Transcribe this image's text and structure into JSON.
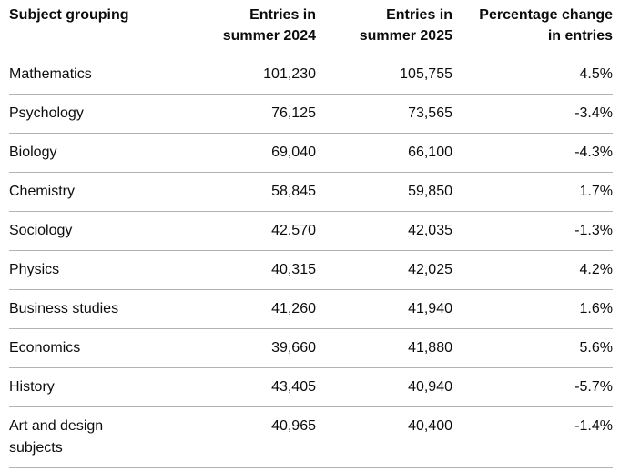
{
  "table": {
    "headers": {
      "subject": "Subject grouping",
      "entries_2024": [
        "Entries in",
        "summer 2024"
      ],
      "entries_2025": [
        "Entries in",
        "summer 2025"
      ],
      "change": [
        "Percentage change",
        "in entries"
      ]
    },
    "rows": [
      {
        "subject": "Mathematics",
        "entries_2024": "101,230",
        "entries_2025": "105,755",
        "change": "4.5%"
      },
      {
        "subject": "Psychology",
        "entries_2024": "76,125",
        "entries_2025": "73,565",
        "change": "-3.4%"
      },
      {
        "subject": "Biology",
        "entries_2024": "69,040",
        "entries_2025": "66,100",
        "change": "-4.3%"
      },
      {
        "subject": "Chemistry",
        "entries_2024": "58,845",
        "entries_2025": "59,850",
        "change": "1.7%"
      },
      {
        "subject": "Sociology",
        "entries_2024": "42,570",
        "entries_2025": "42,035",
        "change": "-1.3%"
      },
      {
        "subject": "Physics",
        "entries_2024": "40,315",
        "entries_2025": "42,025",
        "change": "4.2%"
      },
      {
        "subject": "Business studies",
        "entries_2024": "41,260",
        "entries_2025": "41,940",
        "change": "1.6%"
      },
      {
        "subject": "Economics",
        "entries_2024": "39,660",
        "entries_2025": "41,880",
        "change": "5.6%"
      },
      {
        "subject": "History",
        "entries_2024": "43,405",
        "entries_2025": "40,940",
        "change": "-5.7%"
      },
      {
        "subject": "Art and design subjects",
        "entries_2024": "40,965",
        "entries_2025": "40,400",
        "change": "-1.4%"
      }
    ]
  }
}
